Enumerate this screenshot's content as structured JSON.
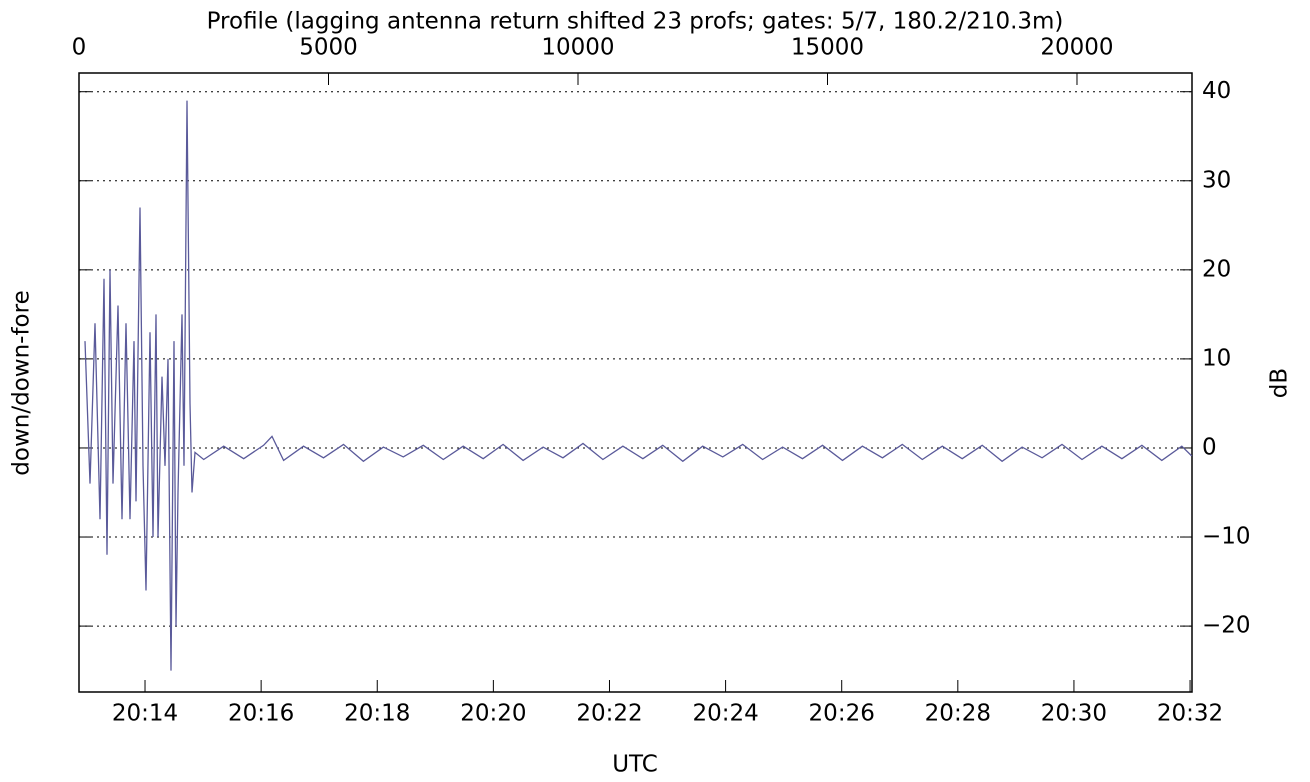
{
  "chart_data": {
    "type": "line",
    "title": "Profile (lagging antenna return shifted 23 profs; gates: 5/7, 180.2/210.3m)",
    "x_label": "UTC",
    "y_label": "down/down-fore",
    "y2_label": "dB",
    "xlim": [
      0,
      22305
    ],
    "xticks": [
      0,
      5000,
      10000,
      15000,
      20000
    ],
    "x2ticks": [
      {
        "value": 1323,
        "label": "20:14"
      },
      {
        "value": 3650,
        "label": "20:16"
      },
      {
        "value": 5977,
        "label": "20:18"
      },
      {
        "value": 8304,
        "label": "20:20"
      },
      {
        "value": 10631,
        "label": "20:22"
      },
      {
        "value": 12958,
        "label": "20:24"
      },
      {
        "value": 15285,
        "label": "20:26"
      },
      {
        "value": 17612,
        "label": "20:28"
      },
      {
        "value": 19939,
        "label": "20:30"
      },
      {
        "value": 22266,
        "label": "20:32"
      }
    ],
    "y2lim": [
      -27.4,
      42.1
    ],
    "y2ticks": [
      {
        "value": -20,
        "label": "−20"
      },
      {
        "value": -10,
        "label": "−10"
      },
      0,
      10,
      20,
      30,
      40
    ],
    "grid": true,
    "series": [
      {
        "color": "#5a5a9a",
        "axis": "y2",
        "x": [
          120,
          220,
          321,
          421,
          501,
          561,
          621,
          681,
          782,
          862,
          942,
          1022,
          1102,
          1142,
          1222,
          1283,
          1343,
          1423,
          1483,
          1543,
          1583,
          1663,
          1723,
          1784,
          1844,
          1904,
          1944,
          1984,
          2064,
          2104,
          2164,
          2224,
          2265,
          2325,
          2500,
          2900,
          3300,
          3700,
          3868,
          4100,
          4500,
          4900,
          5300,
          5700,
          6100,
          6500,
          6900,
          7300,
          7700,
          8100,
          8500,
          8900,
          9300,
          9700,
          10100,
          10500,
          10900,
          11300,
          11700,
          12100,
          12500,
          12900,
          13300,
          13700,
          14100,
          14500,
          14900,
          15300,
          15700,
          16100,
          16500,
          16900,
          17300,
          17700,
          18100,
          18500,
          18900,
          19300,
          19700,
          20100,
          20500,
          20900,
          21300,
          21700,
          22100,
          22300
        ],
        "values": [
          12,
          -4,
          14,
          -8,
          19,
          -12,
          20,
          -4,
          16,
          -8,
          14,
          -8,
          12,
          -6,
          27,
          -2,
          -16,
          13,
          -10,
          15,
          -10,
          8,
          -2,
          10,
          -25,
          12,
          -20,
          -5,
          15,
          -2,
          39,
          5,
          -5,
          -0.5,
          -1.3,
          0.2,
          -1.2,
          0.3,
          1.3,
          -1.4,
          0.2,
          -1.1,
          0.4,
          -1.5,
          0.1,
          -1.0,
          0.3,
          -1.3,
          0.2,
          -1.2,
          0.4,
          -1.4,
          0.1,
          -1.1,
          0.5,
          -1.3,
          0.2,
          -1.2,
          0.3,
          -1.5,
          0.2,
          -1.0,
          0.4,
          -1.3,
          0.1,
          -1.2,
          0.3,
          -1.4,
          0.2,
          -1.1,
          0.4,
          -1.3,
          0.2,
          -1.2,
          0.3,
          -1.5,
          0.1,
          -1.1,
          0.4,
          -1.3,
          0.2,
          -1.2,
          0.3,
          -1.4,
          0.2,
          -0.9
        ]
      }
    ]
  }
}
